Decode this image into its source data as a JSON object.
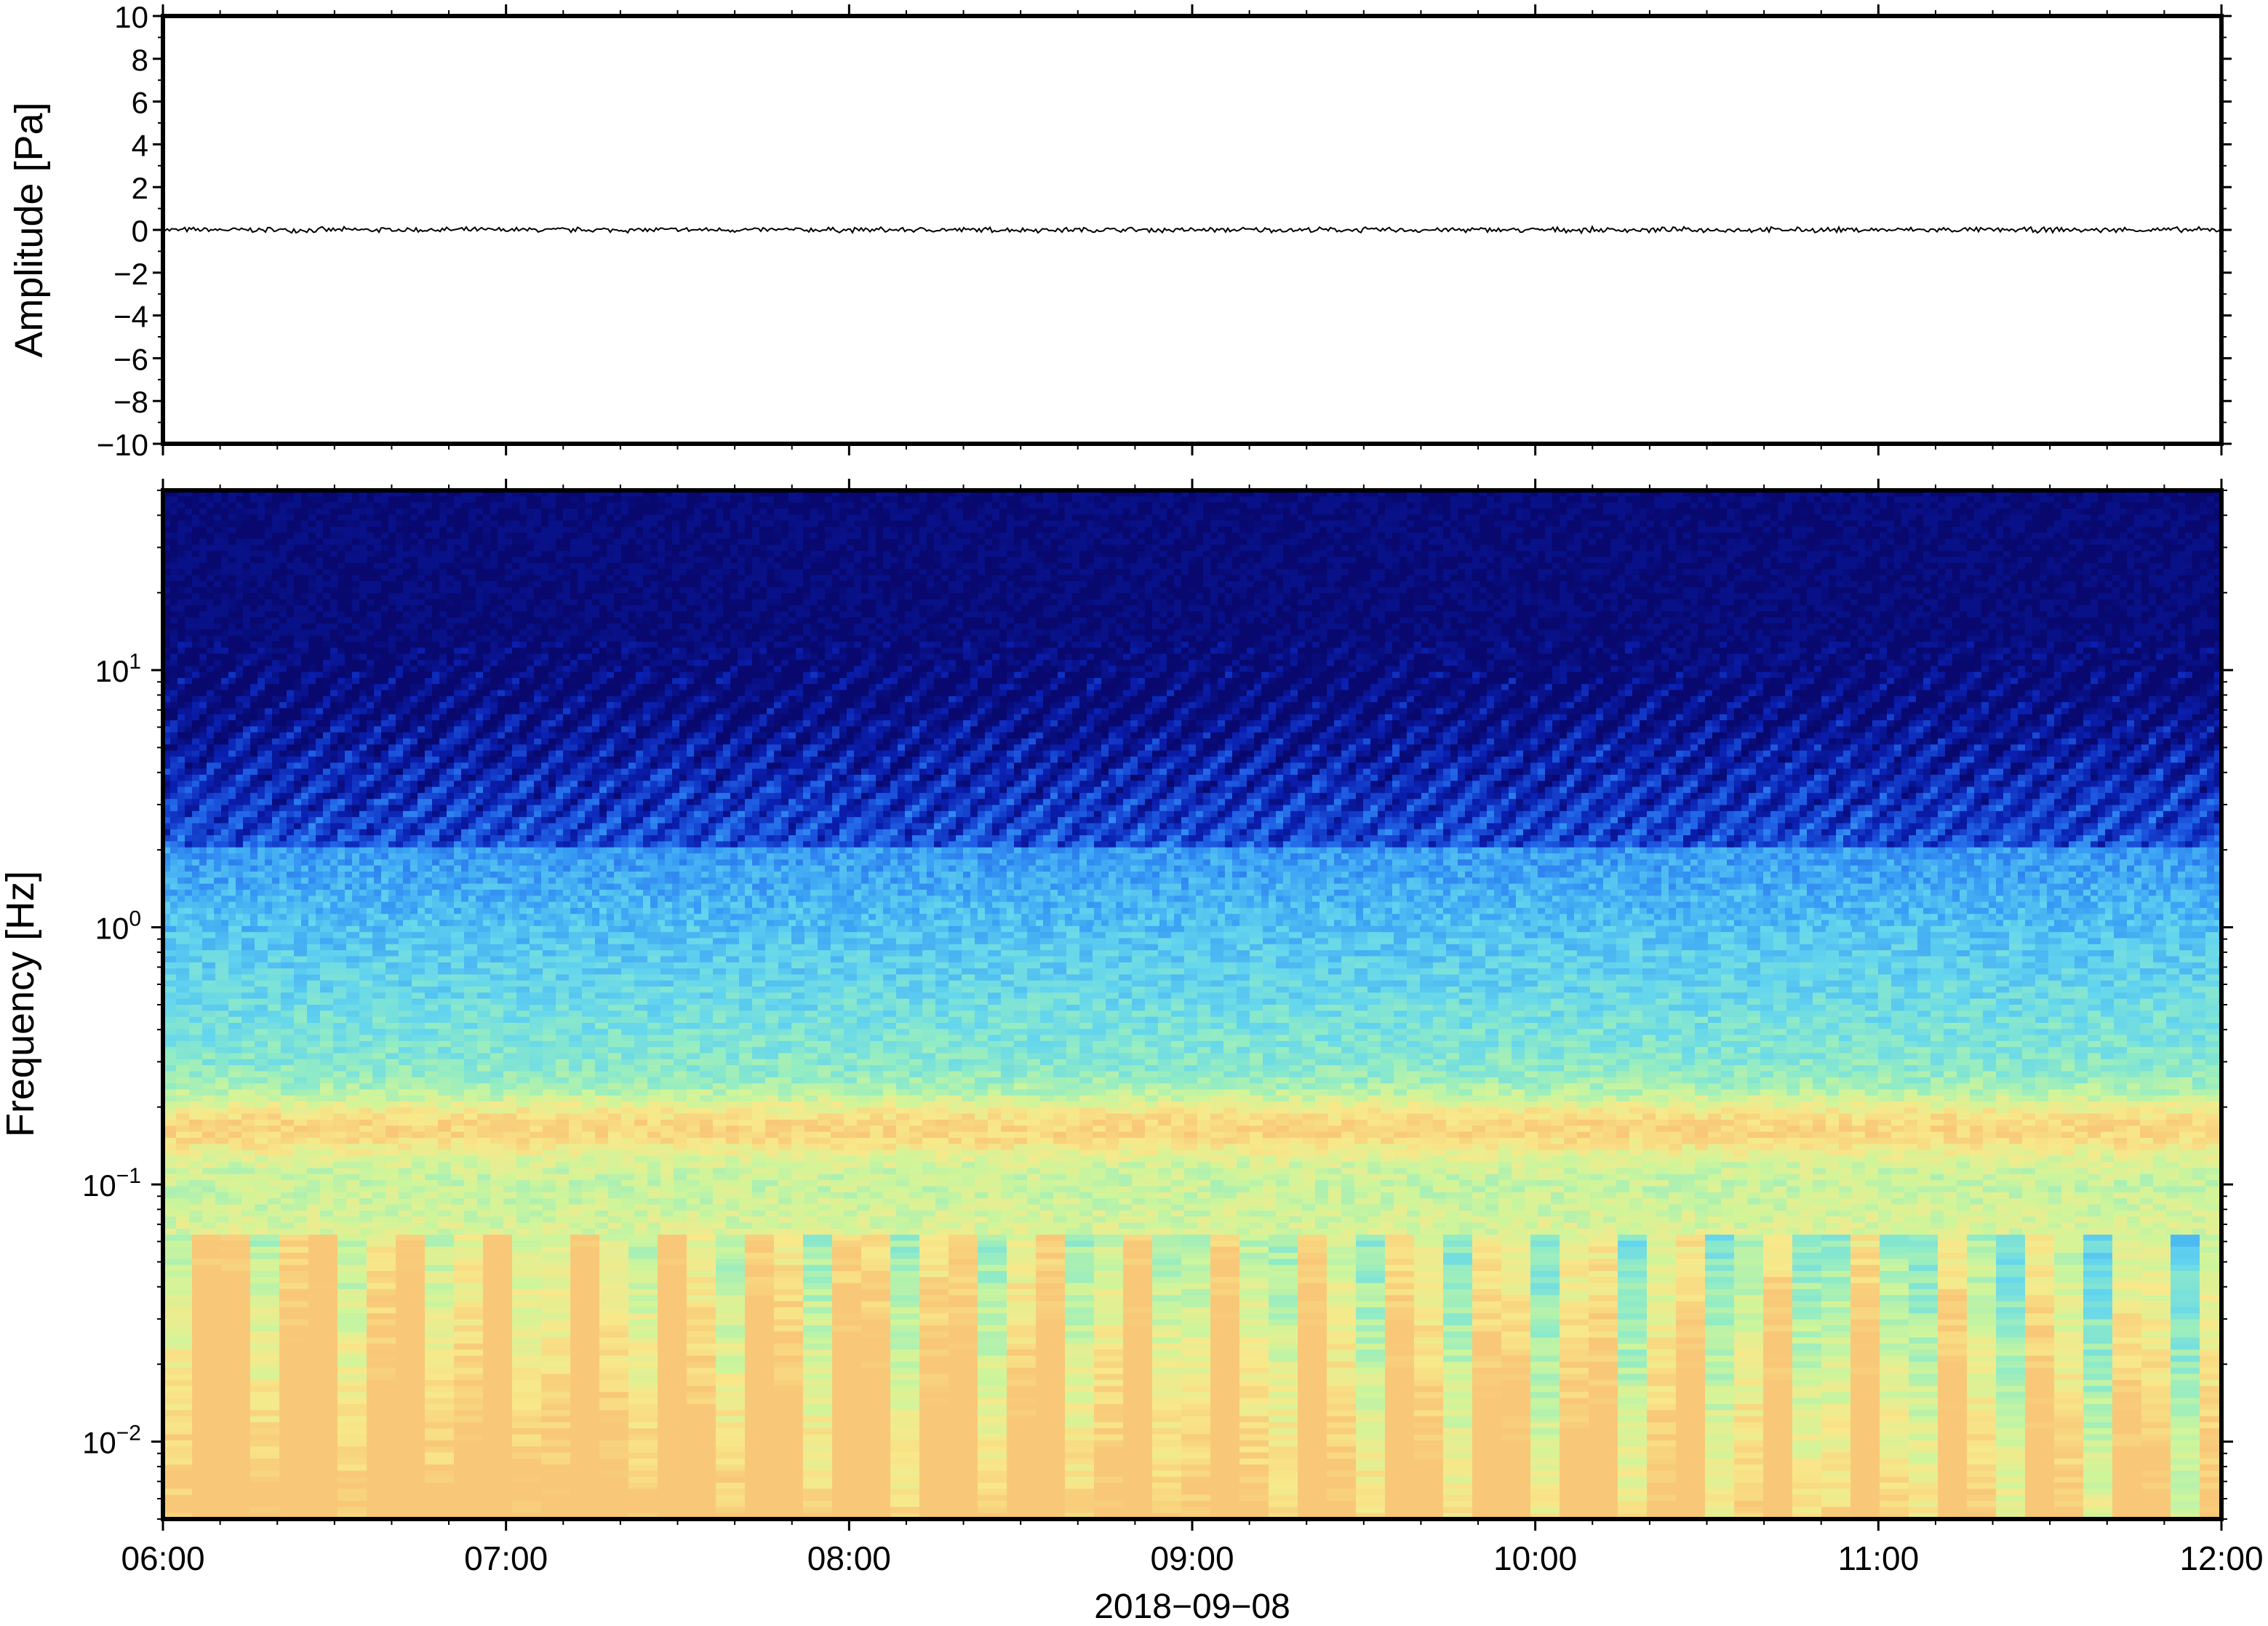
{
  "chart_data": [
    {
      "type": "line",
      "panel": "waveform",
      "ylabel": "Amplitude [Pa]",
      "ylim": [
        -10,
        10
      ],
      "yticks": [
        10,
        8,
        6,
        4,
        2,
        0,
        -2,
        -4,
        -6,
        -8,
        -10
      ],
      "ytick_labels": [
        "10",
        "8",
        "6",
        "4",
        "2",
        "0",
        "−2",
        "−4",
        "−6",
        "−8",
        "−10"
      ],
      "xlim": [
        "06:00",
        "12:00"
      ],
      "series": [
        {
          "color": "#000000",
          "baseline": 0,
          "typical_amplitude": 0.05
        }
      ],
      "grid": false
    },
    {
      "type": "heatmap",
      "panel": "spectrogram",
      "ylabel": "Frequency [Hz]",
      "yscale": "log",
      "ylim": [
        0.005,
        50
      ],
      "yticks": [
        0.01,
        0.1,
        1,
        10
      ],
      "ytick_labels": [
        {
          "base": "10",
          "exp": "−2"
        },
        {
          "base": "10",
          "exp": "−1"
        },
        {
          "base": "10",
          "exp": "0"
        },
        {
          "base": "10",
          "exp": "1"
        }
      ],
      "xlim": [
        "06:00",
        "12:00"
      ],
      "xticks": [
        "06:00",
        "07:00",
        "08:00",
        "09:00",
        "10:00",
        "11:00",
        "12:00"
      ],
      "xlabel": "2018−09−08",
      "colormap": [
        "#08086e",
        "#0a1fb0",
        "#1f5fe6",
        "#3aa0f5",
        "#63d5ee",
        "#92ecc4",
        "#cff59a",
        "#f8e88a",
        "#f8c878"
      ],
      "microseism_band_hz": [
        0.14,
        0.2
      ],
      "grid": false
    }
  ]
}
